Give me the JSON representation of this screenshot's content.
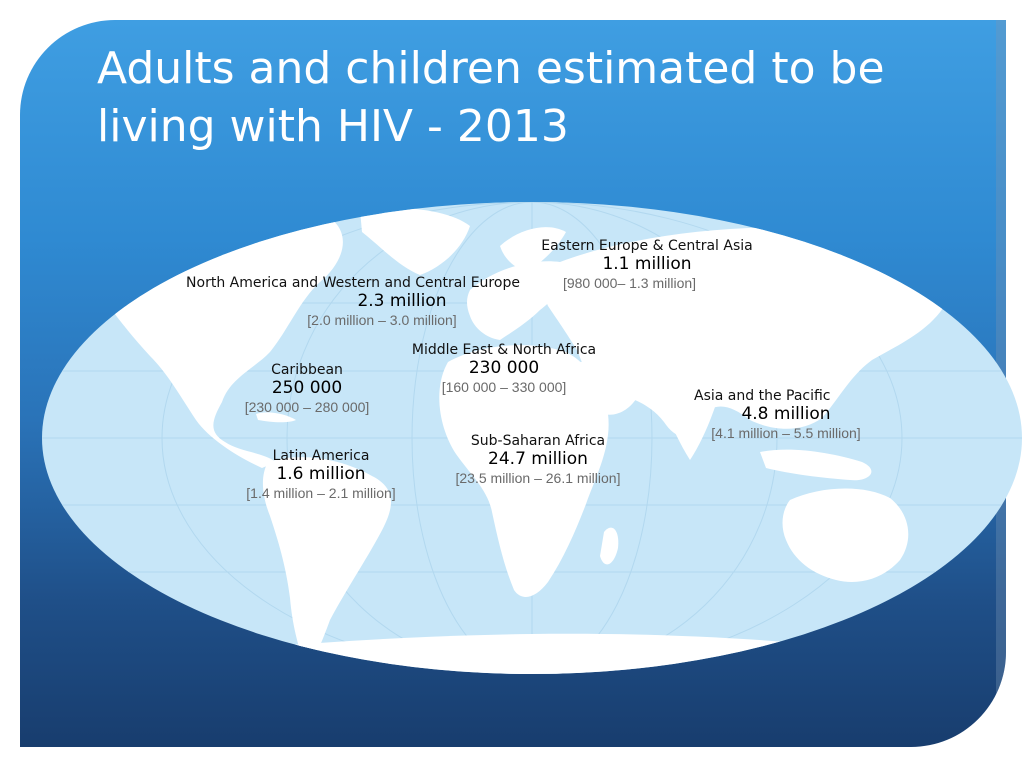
{
  "slide": {
    "title": "Adults and children estimated to be living with HIV - 2013",
    "colors": {
      "ocean": "#c7e6f8",
      "land": "#ffffff",
      "background": "#2f86cf"
    }
  },
  "regions": [
    {
      "name": "Eastern Europe & Central Asia",
      "value": "1.1 million",
      "range": "[980 000– 1.3 million]"
    },
    {
      "name": "North America and Western and Central Europe",
      "value": "2.3 million",
      "range": "[2.0 million – 3.0 million]"
    },
    {
      "name": "Middle East & North Africa",
      "value": "230 000",
      "range": "[160 000 – 330 000]"
    },
    {
      "name": "Caribbean",
      "value": "250 000",
      "range": "[230 000 – 280 000]"
    },
    {
      "name": "Asia and the Pacific",
      "value": "4.8 million",
      "range": "[4.1 million – 5.5 million]"
    },
    {
      "name": "Sub-Saharan Africa",
      "value": "24.7 million",
      "range": "[23.5 million – 26.1 million]"
    },
    {
      "name": "Latin America",
      "value": "1.6 million",
      "range": "[1.4 million – 2.1 million]"
    }
  ]
}
